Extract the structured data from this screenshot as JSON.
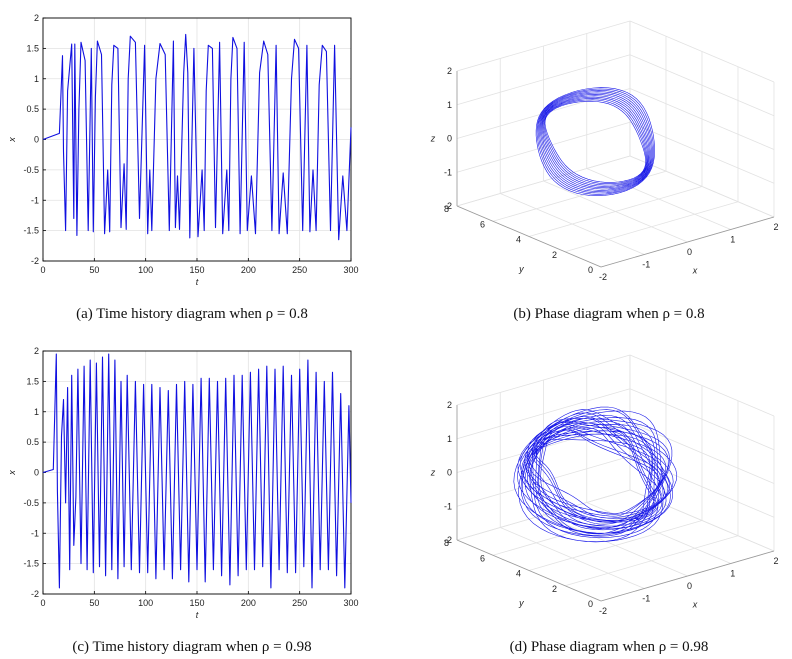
{
  "chart_data": [
    {
      "id": "a",
      "type": "line",
      "caption": "(a) Time history diagram when ρ = 0.8",
      "xlabel": "t",
      "ylabel": "x",
      "xlim": [
        0,
        300
      ],
      "ylim": [
        -2,
        2
      ],
      "xticks": [
        "0",
        "50",
        "100",
        "150",
        "200",
        "250",
        "300"
      ],
      "yticks": [
        "2",
        "1.5",
        "1",
        "0.5",
        "0",
        "-0.5",
        "-1",
        "-1.5",
        "-2"
      ],
      "grid": true,
      "series": [
        {
          "color": "#1010e0",
          "x": [
            0,
            16,
            19,
            20,
            22,
            24,
            28,
            30,
            31,
            33,
            35,
            37,
            41,
            44,
            47,
            49,
            51,
            53,
            57,
            60,
            63,
            65,
            67,
            69,
            73,
            76,
            79,
            81,
            83,
            85,
            90,
            94,
            99,
            102,
            104,
            106,
            110,
            114,
            119,
            123,
            127,
            129,
            131,
            133,
            137,
            139,
            141,
            143,
            147,
            151,
            155,
            157,
            159,
            161,
            165,
            168,
            172,
            175,
            179,
            181,
            183,
            185,
            189,
            192,
            196,
            199,
            203,
            207,
            211,
            215,
            219,
            223,
            227,
            230,
            234,
            238,
            242,
            245,
            249,
            253,
            257,
            260,
            263,
            266,
            269,
            272,
            276,
            280,
            284,
            288,
            292,
            296,
            300
          ],
          "y": [
            0,
            0.1,
            1.38,
            -0.2,
            -1.5,
            0.8,
            1.57,
            -1.3,
            1.57,
            -1.58,
            0.5,
            1.6,
            1.3,
            -1.5,
            1.5,
            -1.52,
            0.7,
            1.62,
            1.4,
            -1.55,
            -0.5,
            -1.52,
            0.9,
            1.55,
            1.5,
            -1.45,
            -0.4,
            -1.48,
            1.0,
            1.7,
            1.6,
            -1.3,
            1.55,
            -1.55,
            -0.5,
            -1.5,
            1.0,
            1.58,
            1.4,
            -1.5,
            1.62,
            -1.45,
            -0.6,
            -1.48,
            1.1,
            1.73,
            1.1,
            -1.62,
            1.5,
            -1.6,
            -0.5,
            -1.5,
            0.8,
            1.55,
            1.5,
            -1.45,
            1.6,
            -1.55,
            -0.5,
            -1.5,
            1.0,
            1.68,
            1.5,
            -1.55,
            1.6,
            -1.5,
            -0.6,
            -1.55,
            1.1,
            1.62,
            1.4,
            -1.5,
            1.55,
            -1.55,
            -0.55,
            -1.55,
            1.0,
            1.65,
            1.5,
            -1.5,
            1.55,
            -1.52,
            -0.5,
            -1.5,
            0.9,
            1.55,
            1.45,
            -1.5,
            1.55,
            -1.65,
            -0.6,
            -1.5,
            0.2
          ]
        }
      ]
    },
    {
      "id": "b",
      "type": "line",
      "caption": "(b) Phase diagram when ρ = 0.8",
      "xlabel": "x",
      "ylabel": "y",
      "zlabel": "z",
      "xlim": [
        -2,
        2
      ],
      "ylim": [
        0,
        8
      ],
      "zlim": [
        -2,
        2
      ],
      "xticks": [
        "-2",
        "-1",
        "0",
        "1",
        "2"
      ],
      "yticks": [
        "0",
        "2",
        "4",
        "6",
        "8"
      ],
      "zticks": [
        "2",
        "1",
        "0",
        "-1",
        "-2"
      ],
      "grid": true
    },
    {
      "id": "c",
      "type": "line",
      "caption": "(c) Time history diagram when ρ = 0.98",
      "xlabel": "t",
      "ylabel": "x",
      "xlim": [
        0,
        300
      ],
      "ylim": [
        -2,
        2
      ],
      "xticks": [
        "0",
        "50",
        "100",
        "150",
        "200",
        "250",
        "300"
      ],
      "yticks": [
        "2",
        "1.5",
        "1",
        "0.5",
        "0",
        "-0.5",
        "-1",
        "-1.5",
        "-2"
      ],
      "grid": true,
      "series": [
        {
          "color": "#1010e0",
          "x": [
            0,
            10,
            13,
            14,
            16,
            18,
            20,
            22,
            24,
            26,
            28,
            30,
            32,
            34,
            37,
            40,
            43,
            46,
            49,
            52,
            55,
            58,
            61,
            64,
            67,
            70,
            73,
            76,
            79,
            82,
            86,
            90,
            94,
            98,
            102,
            106,
            110,
            114,
            118,
            122,
            126,
            130,
            134,
            138,
            142,
            146,
            150,
            154,
            158,
            162,
            166,
            170,
            174,
            178,
            182,
            186,
            190,
            194,
            198,
            202,
            206,
            210,
            214,
            218,
            222,
            226,
            230,
            234,
            238,
            242,
            246,
            250,
            254,
            258,
            262,
            266,
            270,
            274,
            278,
            282,
            286,
            290,
            294,
            298,
            300
          ],
          "y": [
            0,
            0.05,
            1.95,
            -0.3,
            -1.9,
            0.6,
            1.2,
            -0.5,
            1.4,
            -1.6,
            1.6,
            -1.2,
            -0.4,
            1.7,
            -1.5,
            1.75,
            -1.6,
            1.85,
            -1.65,
            1.8,
            -1.55,
            1.9,
            -1.7,
            1.95,
            -1.6,
            1.85,
            -1.75,
            1.5,
            -1.55,
            1.6,
            -1.6,
            1.5,
            -1.65,
            1.45,
            -1.65,
            1.45,
            -1.75,
            1.4,
            -1.6,
            1.35,
            -1.75,
            1.45,
            -1.6,
            1.5,
            -1.8,
            1.45,
            -1.6,
            1.55,
            -1.8,
            1.55,
            -1.6,
            1.5,
            -1.7,
            1.55,
            -1.85,
            1.6,
            -1.7,
            1.6,
            -1.6,
            1.65,
            -1.6,
            1.7,
            -1.55,
            1.75,
            -1.9,
            1.7,
            -1.6,
            1.75,
            -1.65,
            1.6,
            -1.65,
            1.7,
            -1.55,
            1.85,
            -1.9,
            1.65,
            -1.6,
            1.5,
            -1.6,
            1.65,
            -1.7,
            1.3,
            -1.9,
            1.1,
            -0.5
          ]
        }
      ]
    },
    {
      "id": "d",
      "type": "line",
      "caption": "(d) Phase diagram when ρ = 0.98",
      "xlabel": "x",
      "ylabel": "y",
      "zlabel": "z",
      "xlim": [
        -2,
        2
      ],
      "ylim": [
        0,
        8
      ],
      "zlim": [
        -2,
        2
      ],
      "xticks": [
        "-2",
        "-1",
        "0",
        "1",
        "2"
      ],
      "yticks": [
        "0",
        "2",
        "4",
        "6",
        "8"
      ],
      "zticks": [
        "2",
        "1",
        "0",
        "-1",
        "-2"
      ],
      "grid": true
    }
  ]
}
